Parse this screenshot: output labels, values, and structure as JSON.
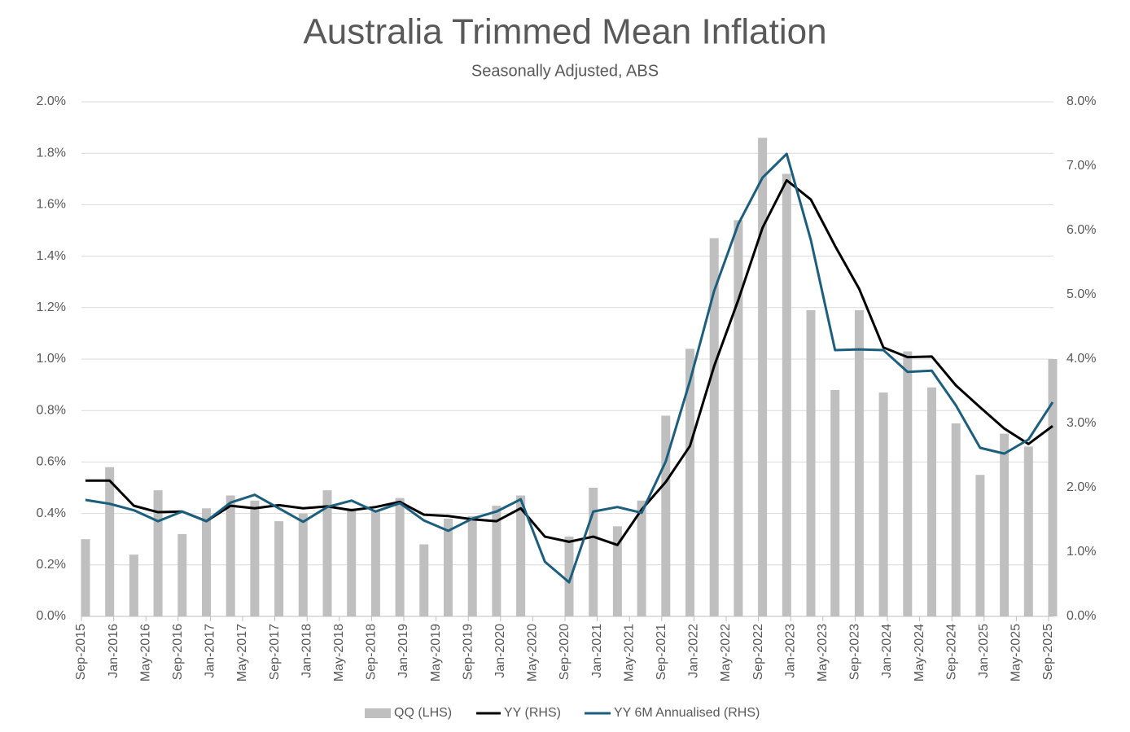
{
  "chart_data": {
    "type": "combo",
    "title": "Australia Trimmed Mean Inflation",
    "subtitle": "Seasonally Adjusted, ABS",
    "x": [
      "2015-09",
      "2015-12",
      "2016-03",
      "2016-06",
      "2016-09",
      "2016-12",
      "2017-03",
      "2017-06",
      "2017-09",
      "2017-12",
      "2018-03",
      "2018-06",
      "2018-09",
      "2018-12",
      "2019-03",
      "2019-06",
      "2019-09",
      "2019-12",
      "2020-03",
      "2020-06",
      "2020-09",
      "2020-12",
      "2021-03",
      "2021-06",
      "2021-09",
      "2021-12",
      "2022-03",
      "2022-06",
      "2022-09",
      "2022-12",
      "2023-03",
      "2023-06",
      "2023-09",
      "2023-12",
      "2024-03",
      "2024-06",
      "2024-09",
      "2024-12",
      "2025-03",
      "2025-06",
      "2025-09"
    ],
    "xlim": [
      "2015-09",
      "2025-09"
    ],
    "xticks": [
      {
        "value": "2015-09",
        "label": "Sep-2015"
      },
      {
        "value": "2016-01",
        "label": "Jan-2016"
      },
      {
        "value": "2016-05",
        "label": "May-2016"
      },
      {
        "value": "2016-09",
        "label": "Sep-2016"
      },
      {
        "value": "2017-01",
        "label": "Jan-2017"
      },
      {
        "value": "2017-05",
        "label": "May-2017"
      },
      {
        "value": "2017-09",
        "label": "Sep-2017"
      },
      {
        "value": "2018-01",
        "label": "Jan-2018"
      },
      {
        "value": "2018-05",
        "label": "May-2018"
      },
      {
        "value": "2018-09",
        "label": "Sep-2018"
      },
      {
        "value": "2019-01",
        "label": "Jan-2019"
      },
      {
        "value": "2019-05",
        "label": "May-2019"
      },
      {
        "value": "2019-09",
        "label": "Sep-2019"
      },
      {
        "value": "2020-01",
        "label": "Jan-2020"
      },
      {
        "value": "2020-05",
        "label": "May-2020"
      },
      {
        "value": "2020-09",
        "label": "Sep-2020"
      },
      {
        "value": "2021-01",
        "label": "Jan-2021"
      },
      {
        "value": "2021-05",
        "label": "May-2021"
      },
      {
        "value": "2021-09",
        "label": "Sep-2021"
      },
      {
        "value": "2022-01",
        "label": "Jan-2022"
      },
      {
        "value": "2022-05",
        "label": "May-2022"
      },
      {
        "value": "2022-09",
        "label": "Sep-2022"
      },
      {
        "value": "2023-01",
        "label": "Jan-2023"
      },
      {
        "value": "2023-05",
        "label": "May-2023"
      },
      {
        "value": "2023-09",
        "label": "Sep-2023"
      },
      {
        "value": "2024-01",
        "label": "Jan-2024"
      },
      {
        "value": "2024-05",
        "label": "May-2024"
      },
      {
        "value": "2024-09",
        "label": "Sep-2024"
      },
      {
        "value": "2025-01",
        "label": "Jan-2025"
      },
      {
        "value": "2025-05",
        "label": "May-2025"
      },
      {
        "value": "2025-09",
        "label": "Sep-2025"
      }
    ],
    "ylim": [
      0,
      2.0
    ],
    "yticks": [
      {
        "value": 0,
        "label": "0.0%"
      },
      {
        "value": 0.2,
        "label": "0.2%"
      },
      {
        "value": 0.4,
        "label": "0.4%"
      },
      {
        "value": 0.6,
        "label": "0.6%"
      },
      {
        "value": 0.8,
        "label": "0.8%"
      },
      {
        "value": 1.0,
        "label": "1.0%"
      },
      {
        "value": 1.2,
        "label": "1.2%"
      },
      {
        "value": 1.4,
        "label": "1.4%"
      },
      {
        "value": 1.6,
        "label": "1.6%"
      },
      {
        "value": 1.8,
        "label": "1.8%"
      },
      {
        "value": 2.0,
        "label": "2.0%"
      }
    ],
    "y2lim": [
      0,
      8.0
    ],
    "y2ticks": [
      {
        "value": 0,
        "label": "0.0%"
      },
      {
        "value": 1,
        "label": "1.0%"
      },
      {
        "value": 2,
        "label": "2.0%"
      },
      {
        "value": 3,
        "label": "3.0%"
      },
      {
        "value": 4,
        "label": "4.0%"
      },
      {
        "value": 5,
        "label": "5.0%"
      },
      {
        "value": 6,
        "label": "6.0%"
      },
      {
        "value": 7,
        "label": "7.0%"
      },
      {
        "value": 8,
        "label": "8.0%"
      }
    ],
    "grid": true,
    "legend": "bottom",
    "series": [
      {
        "name": "QQ (LHS)",
        "type": "bar",
        "color": "#bfbfbf",
        "axis": "y",
        "values": [
          0.3,
          0.58,
          0.24,
          0.49,
          0.32,
          0.42,
          0.47,
          0.45,
          0.37,
          0.4,
          0.49,
          0.42,
          0.41,
          0.46,
          0.28,
          0.38,
          0.39,
          0.43,
          0.47,
          0.0,
          0.31,
          0.5,
          0.35,
          0.45,
          0.78,
          1.04,
          1.47,
          1.54,
          1.86,
          1.72,
          1.19,
          0.88,
          1.19,
          0.87,
          1.03,
          0.89,
          0.75,
          0.55,
          0.71,
          0.66,
          1.0
        ]
      },
      {
        "name": "YY (RHS)",
        "type": "line",
        "color": "#000000",
        "axis": "y2",
        "values": [
          2.11,
          2.11,
          1.72,
          1.62,
          1.63,
          1.48,
          1.72,
          1.68,
          1.73,
          1.68,
          1.71,
          1.65,
          1.7,
          1.78,
          1.58,
          1.56,
          1.51,
          1.48,
          1.68,
          1.24,
          1.16,
          1.24,
          1.11,
          1.66,
          2.09,
          2.65,
          3.89,
          4.92,
          6.04,
          6.78,
          6.48,
          5.76,
          5.09,
          4.18,
          4.03,
          4.04,
          3.59,
          3.25,
          2.92,
          2.68,
          2.96
        ]
      },
      {
        "name": "YY 6M Annualised (RHS)",
        "type": "line",
        "color": "#1b5e7e",
        "axis": "y2",
        "values": [
          1.81,
          1.75,
          1.65,
          1.48,
          1.63,
          1.48,
          1.77,
          1.89,
          1.68,
          1.47,
          1.7,
          1.8,
          1.63,
          1.76,
          1.49,
          1.33,
          1.52,
          1.63,
          1.82,
          0.85,
          0.53,
          1.63,
          1.7,
          1.61,
          2.41,
          3.66,
          5.06,
          6.1,
          6.82,
          7.19,
          5.85,
          4.14,
          4.15,
          4.14,
          3.8,
          3.82,
          3.28,
          2.62,
          2.53,
          2.75,
          3.33
        ]
      }
    ]
  }
}
